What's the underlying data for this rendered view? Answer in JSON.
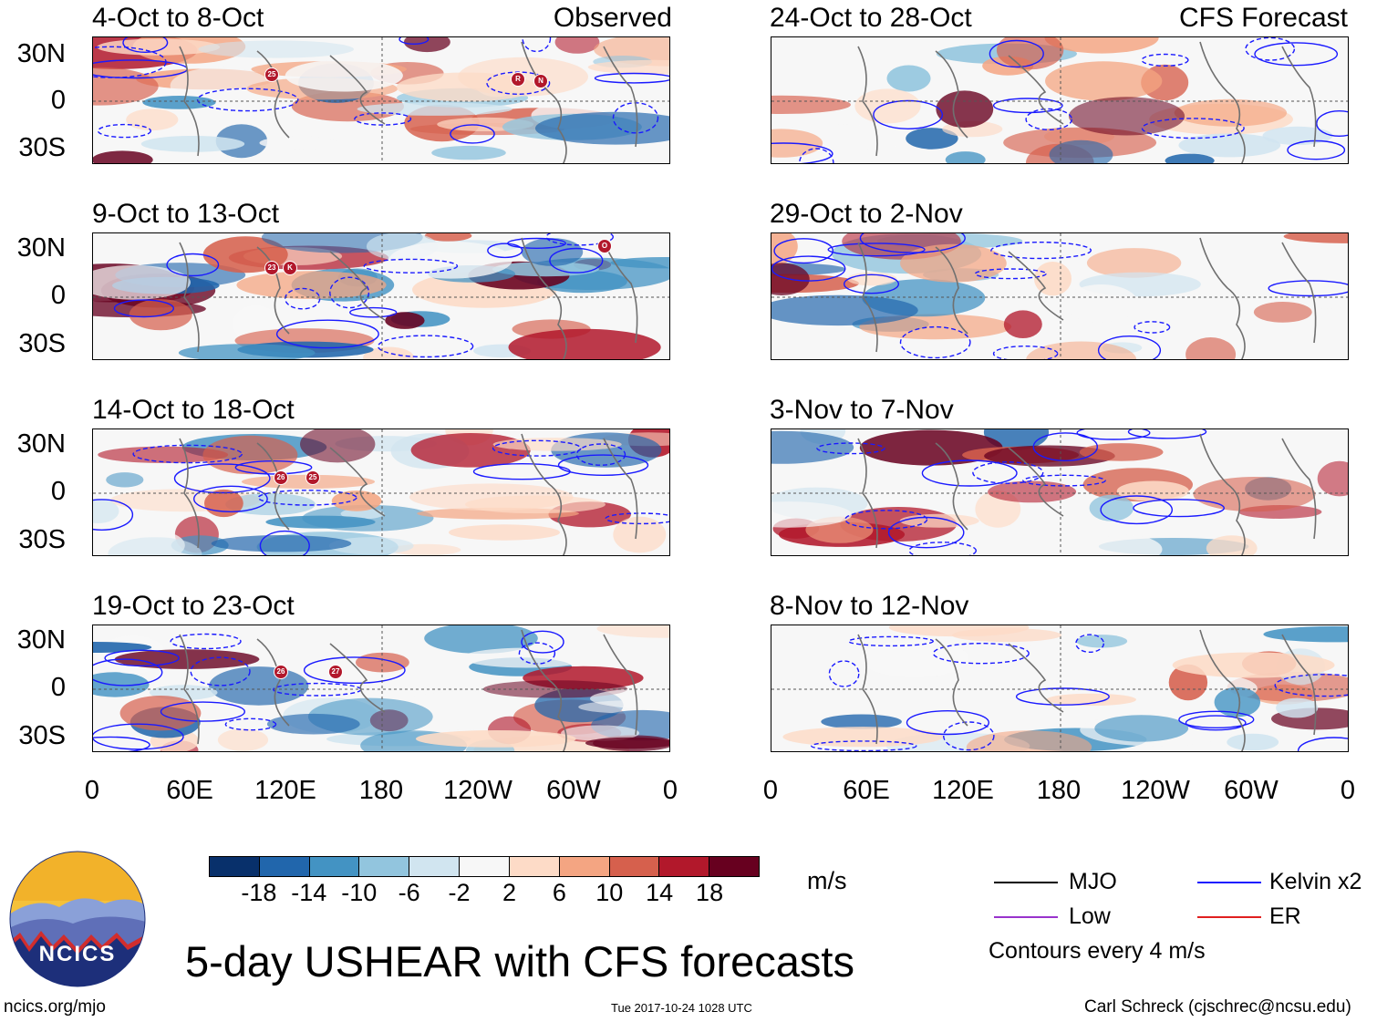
{
  "header": {
    "observed_label": "Observed",
    "forecast_label": "CFS Forecast"
  },
  "panels_left": [
    {
      "title": "4-Oct to 8-Oct",
      "markers": [
        "25",
        "R",
        "N"
      ]
    },
    {
      "title": "9-Oct to 13-Oct",
      "markers": [
        "23",
        "K",
        "O"
      ]
    },
    {
      "title": "14-Oct to 18-Oct",
      "markers": [
        "26",
        "25"
      ]
    },
    {
      "title": "19-Oct to 23-Oct",
      "markers": [
        "26",
        "27"
      ]
    }
  ],
  "panels_right": [
    {
      "title": "24-Oct to 28-Oct"
    },
    {
      "title": "29-Oct to 2-Nov"
    },
    {
      "title": "3-Nov to 7-Nov"
    },
    {
      "title": "8-Nov to 12-Nov"
    }
  ],
  "lat_labels": [
    "30N",
    "0",
    "30S"
  ],
  "lon_labels": [
    "0",
    "60E",
    "120E",
    "180",
    "120W",
    "60W",
    "0"
  ],
  "colorbar": {
    "unit": "m/s",
    "tick_labels": [
      "-18",
      "-14",
      "-10",
      "-6",
      "-2",
      "2",
      "6",
      "10",
      "14",
      "18"
    ],
    "colors": [
      "#08306b",
      "#2166ac",
      "#4393c3",
      "#92c5de",
      "#d1e5f0",
      "#f7f7f7",
      "#fddbc7",
      "#f4a582",
      "#d6604d",
      "#b2182b",
      "#67001f"
    ]
  },
  "legend": {
    "mjo": "MJO",
    "kelvin": "Kelvin x2",
    "low": "Low",
    "er": "ER",
    "contour_note": "Contours every 4 m/s",
    "colors": {
      "mjo": "#000000",
      "kelvin": "#1a1aff",
      "low": "#9933cc",
      "er": "#e02020"
    }
  },
  "logo": {
    "text": "NCICS"
  },
  "main_title": "5-day USHEAR with CFS forecasts",
  "footer": {
    "website": "ncics.org/mjo",
    "timestamp": "Tue 2017-10-24 1028 UTC",
    "author": "Carl Schreck (cjschrec@ncsu.edu)"
  }
}
